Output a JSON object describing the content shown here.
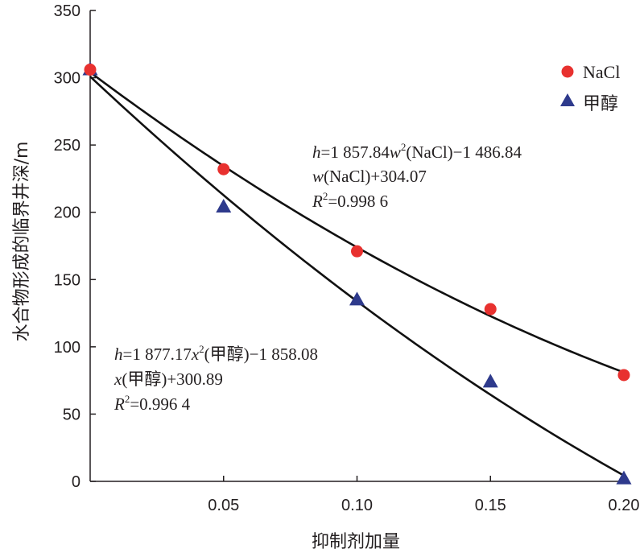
{
  "chart_data": {
    "type": "scatter",
    "xlabel": "抑制剂加量",
    "ylabel": "水合物形成的临界井深/m",
    "xlim": [
      0,
      0.2
    ],
    "ylim": [
      0,
      350
    ],
    "x_ticks": [
      0.05,
      0.1,
      0.15,
      0.2
    ],
    "x_tick_labels": [
      "0.05",
      "0.10",
      "0.15",
      "0.20"
    ],
    "y_ticks": [
      0,
      50,
      100,
      150,
      200,
      250,
      300,
      350
    ],
    "y_tick_labels": [
      "0",
      "50",
      "100",
      "150",
      "200",
      "250",
      "300",
      "350"
    ],
    "legend_position": "top-right",
    "series": [
      {
        "name": "NaCl",
        "marker": "circle",
        "color": "#e8312f",
        "x": [
          0,
          0.05,
          0.1,
          0.15,
          0.2
        ],
        "y": [
          306,
          232,
          171,
          128,
          79
        ],
        "fit": {
          "a": 1857.84,
          "b": -1486.84,
          "c": 304.07
        }
      },
      {
        "name": "甲醇",
        "marker": "triangle",
        "color": "#2e3a8c",
        "x": [
          0,
          0.05,
          0.1,
          0.15,
          0.2
        ],
        "y": [
          306,
          204,
          135,
          74,
          2
        ],
        "fit": {
          "a": 1877.17,
          "b": -1858.08,
          "c": 300.89
        }
      }
    ],
    "annotations": {
      "nacl": {
        "line1": {
          "v1": "h",
          "t1": "=1 857.84",
          "v2": "w",
          "sup": "2",
          "t2": "(NaCl)−1 486.84"
        },
        "line2": {
          "v1": "w",
          "t1": "(NaCl)+304.07"
        },
        "line3": {
          "v1": "R",
          "sup": "2",
          "t1": "=0.998 6"
        }
      },
      "methanol": {
        "line1": {
          "v1": "h",
          "t1": "=1 877.17",
          "v2": "x",
          "sup": "2",
          "t2": "(甲醇)−1 858.08"
        },
        "line2": {
          "v1": "x",
          "t1": "(甲醇)+300.89"
        },
        "line3": {
          "v1": "R",
          "sup": "2",
          "t1": "=0.996 4"
        }
      }
    }
  }
}
